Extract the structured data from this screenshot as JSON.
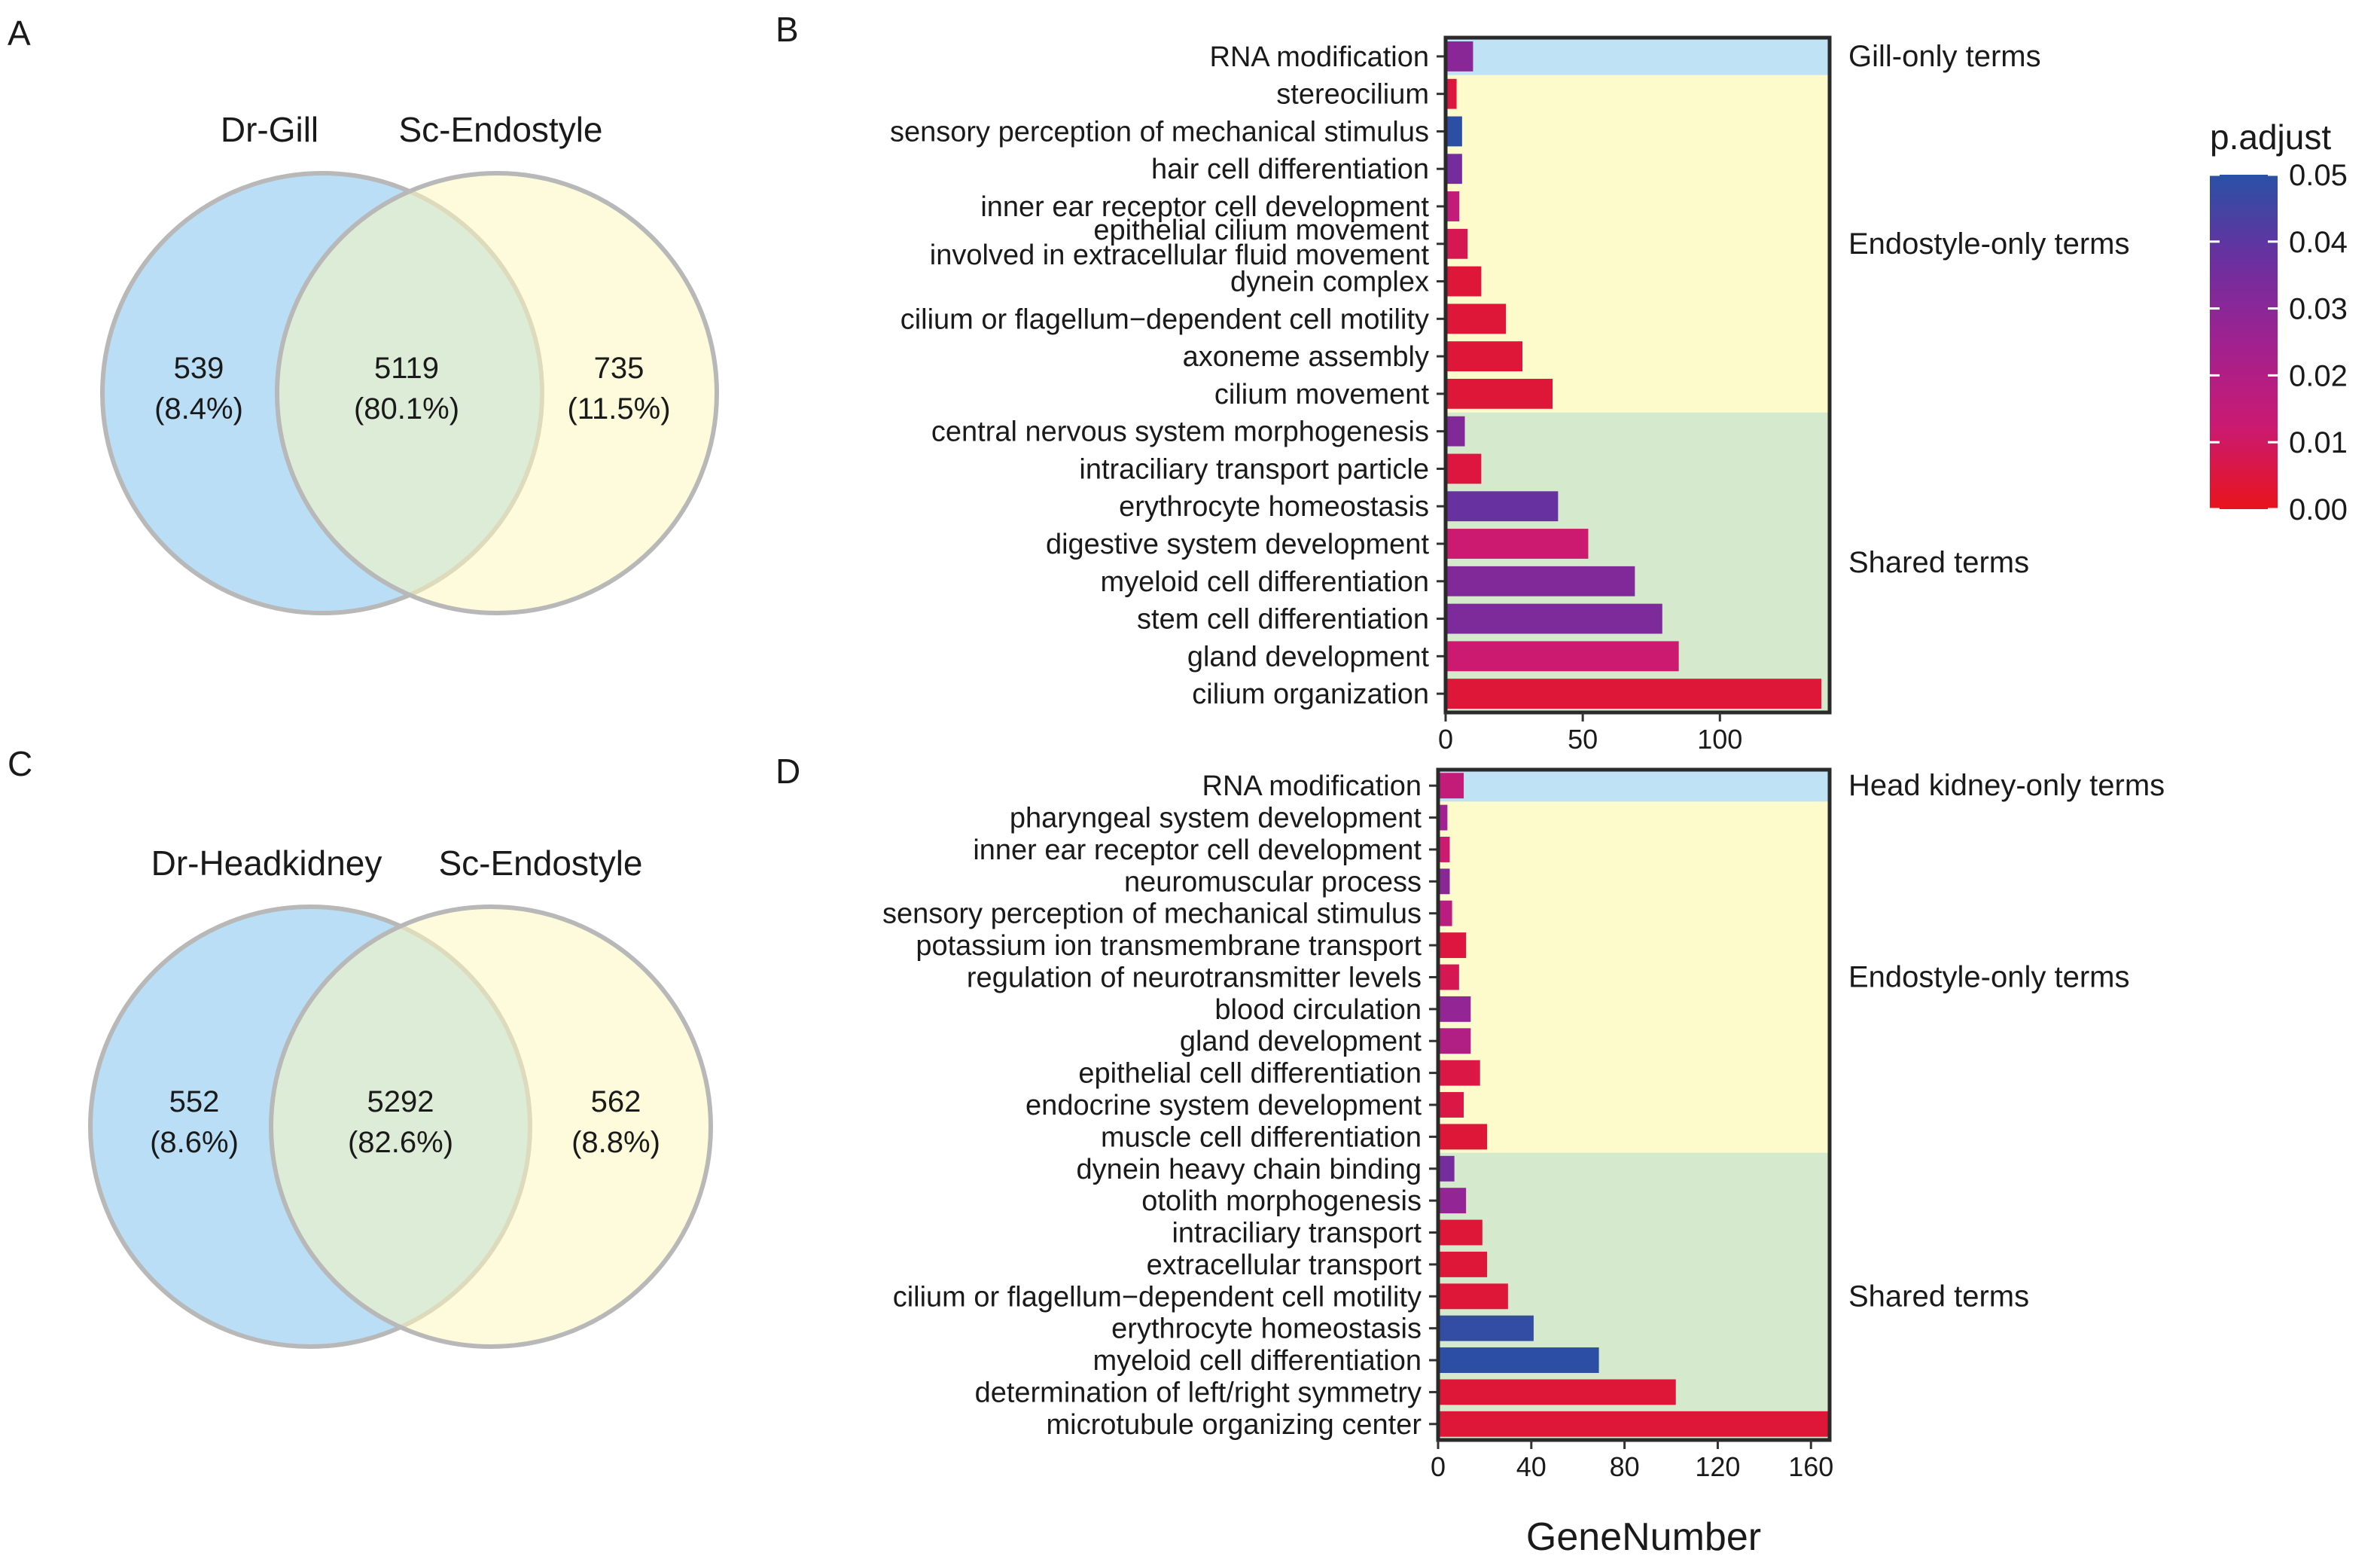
{
  "chart_data": [
    {
      "panel": "A",
      "type": "venn",
      "sets": [
        {
          "name": "Dr-Gill",
          "color": "#b9def5"
        },
        {
          "name": "Sc-Endostyle",
          "color": "#fbf8be"
        }
      ],
      "regions": [
        {
          "count": "539",
          "percent": "(8.4%)"
        },
        {
          "count": "5119",
          "percent": "(80.1%)"
        },
        {
          "count": "735",
          "percent": "(11.5%)"
        }
      ]
    },
    {
      "panel": "B",
      "type": "bar",
      "orientation": "horizontal",
      "xlabel": "GeneNumber",
      "xlim": [
        0,
        140
      ],
      "xticks": [
        0,
        50,
        100
      ],
      "color_scale": {
        "name": "p.adjust",
        "min": 0.0,
        "max": 0.05
      },
      "groups": [
        {
          "label": "Gill-only terms",
          "color": "#bfe2f5",
          "count": 1
        },
        {
          "label": "Endostyle-only terms",
          "color": "#fdfacb",
          "count": 9
        },
        {
          "label": "Shared terms",
          "color": "#d5e9cc",
          "count": 8
        }
      ],
      "categories": [
        "RNA modification",
        "stereocilium",
        "sensory perception of mechanical stimulus",
        "hair cell differentiation",
        "inner ear receptor cell development",
        "epithelial cilium movement\ninvolved in extracellular fluid movement",
        "dynein complex",
        "cilium or flagellum−dependent cell motility",
        "axoneme assembly",
        "cilium movement",
        "central nervous system morphogenesis",
        "intraciliary transport particle",
        "erythrocyte homeostasis",
        "digestive system development",
        "myeloid cell differentiation",
        "stem cell differentiation",
        "gland development",
        "cilium organization"
      ],
      "values": [
        10,
        4,
        6,
        6,
        5,
        8,
        13,
        22,
        28,
        39,
        7,
        13,
        41,
        52,
        69,
        79,
        85,
        137
      ],
      "p_adjust": [
        0.03,
        0.005,
        0.049,
        0.035,
        0.015,
        0.008,
        0.004,
        0.004,
        0.004,
        0.004,
        0.032,
        0.005,
        0.038,
        0.012,
        0.032,
        0.033,
        0.012,
        0.004
      ]
    },
    {
      "panel": "C",
      "type": "venn",
      "sets": [
        {
          "name": "Dr-Headkidney",
          "color": "#b9def5"
        },
        {
          "name": "Sc-Endostyle",
          "color": "#fbf8be"
        }
      ],
      "regions": [
        {
          "count": "552",
          "percent": "(8.6%)"
        },
        {
          "count": "5292",
          "percent": "(82.6%)"
        },
        {
          "count": "562",
          "percent": "(8.8%)"
        }
      ]
    },
    {
      "panel": "D",
      "type": "bar",
      "orientation": "horizontal",
      "xlabel": "GeneNumber",
      "xlim": [
        0,
        168
      ],
      "xticks": [
        0,
        40,
        80,
        120,
        160
      ],
      "color_scale": {
        "name": "p.adjust",
        "min": 0.0,
        "max": 0.05
      },
      "groups": [
        {
          "label": "Head kidney-only terms",
          "color": "#bfe2f5",
          "count": 1
        },
        {
          "label": "Endostyle-only terms",
          "color": "#fdfacb",
          "count": 11
        },
        {
          "label": "Shared terms",
          "color": "#d5e9cc",
          "count": 9
        }
      ],
      "categories": [
        "RNA modification",
        "pharyngeal system development",
        "inner ear receptor cell development",
        "neuromuscular process",
        "sensory perception of mechanical stimulus",
        "potassium ion transmembrane transport",
        "regulation of neurotransmitter levels",
        "blood circulation",
        "gland development",
        "epithelial cell differentiation",
        "endocrine system development",
        "muscle cell differentiation",
        "dynein heavy chain binding",
        "otolith morphogenesis",
        "intraciliary transport",
        "extracellular transport",
        "cilium or flagellum−dependent cell motility",
        "erythrocyte homeostasis",
        "myeloid cell differentiation",
        "determination of left/right symmetry",
        "microtubule organizing center"
      ],
      "values": [
        11,
        4,
        5,
        5,
        6,
        12,
        9,
        14,
        14,
        18,
        11,
        21,
        7,
        12,
        19,
        21,
        30,
        41,
        69,
        102,
        168
      ],
      "p_adjust": [
        0.015,
        0.025,
        0.012,
        0.03,
        0.018,
        0.005,
        0.008,
        0.028,
        0.02,
        0.006,
        0.006,
        0.004,
        0.035,
        0.028,
        0.004,
        0.004,
        0.004,
        0.048,
        0.049,
        0.004,
        0.004
      ]
    }
  ],
  "panels": {
    "a": "A",
    "b": "B",
    "c": "C",
    "d": "D"
  },
  "colorbar": {
    "title": "p.adjust",
    "ticks": [
      "0.05",
      "0.04",
      "0.03",
      "0.02",
      "0.01",
      "0.00"
    ],
    "colors": [
      "#e8141c",
      "#ca1a72",
      "#a02190",
      "#6a30a0",
      "#2851a5"
    ]
  }
}
